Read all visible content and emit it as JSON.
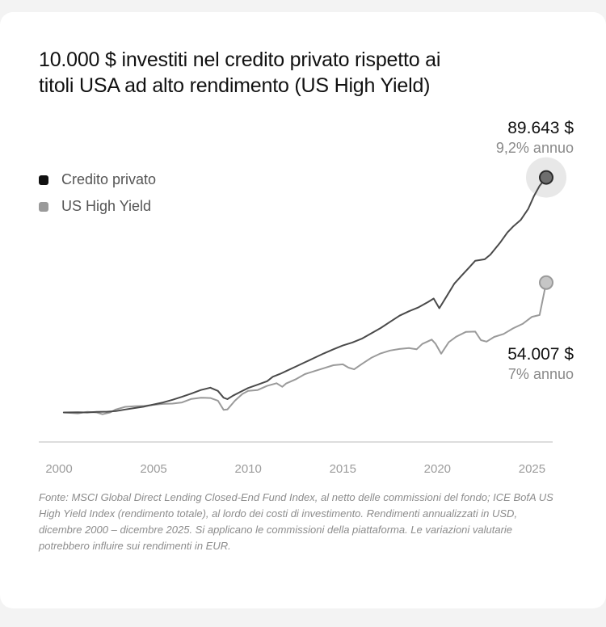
{
  "chart_data": {
    "type": "line",
    "title": "10.000 $ investiti nel credito privato rispetto ai titoli USA ad alto rendimento (US High Yield)",
    "x_ticks": [
      "2000",
      "2005",
      "2010",
      "2015",
      "2020",
      "2025"
    ],
    "xlim": [
      2000,
      2025.75
    ],
    "ylim": [
      0,
      95000
    ],
    "grid": false,
    "legend_position": "top-left",
    "series": [
      {
        "name": "Credito privato",
        "color": "#4a4a4a",
        "marker_color": "#1a1a1a",
        "end_value": "89.643 $",
        "end_rate": "9,2% annuo",
        "points": [
          [
            2000.25,
            10000
          ],
          [
            2001.0,
            10050
          ],
          [
            2001.5,
            10000
          ],
          [
            2002.0,
            10180
          ],
          [
            2002.5,
            10250
          ],
          [
            2003.0,
            10450
          ],
          [
            2003.5,
            11000
          ],
          [
            2004.0,
            11500
          ],
          [
            2004.5,
            12000
          ],
          [
            2005.0,
            12700
          ],
          [
            2005.5,
            13400
          ],
          [
            2006.0,
            14300
          ],
          [
            2006.5,
            15300
          ],
          [
            2007.0,
            16400
          ],
          [
            2007.5,
            17600
          ],
          [
            2008.0,
            18400
          ],
          [
            2008.4,
            17300
          ],
          [
            2008.7,
            15000
          ],
          [
            2008.9,
            14500
          ],
          [
            2009.2,
            15700
          ],
          [
            2009.6,
            17000
          ],
          [
            2010.0,
            18300
          ],
          [
            2010.5,
            19400
          ],
          [
            2011.0,
            20600
          ],
          [
            2011.3,
            22100
          ],
          [
            2011.7,
            23100
          ],
          [
            2012.0,
            24000
          ],
          [
            2012.5,
            25500
          ],
          [
            2013.0,
            27000
          ],
          [
            2013.5,
            28500
          ],
          [
            2014.0,
            30000
          ],
          [
            2014.5,
            31400
          ],
          [
            2015.0,
            32700
          ],
          [
            2015.5,
            33700
          ],
          [
            2016.0,
            35000
          ],
          [
            2016.5,
            36800
          ],
          [
            2017.0,
            38600
          ],
          [
            2017.5,
            40700
          ],
          [
            2018.0,
            42800
          ],
          [
            2018.5,
            44300
          ],
          [
            2019.0,
            45600
          ],
          [
            2019.5,
            47400
          ],
          [
            2019.8,
            48600
          ],
          [
            2020.1,
            45300
          ],
          [
            2020.5,
            49500
          ],
          [
            2020.9,
            53700
          ],
          [
            2021.3,
            56500
          ],
          [
            2021.7,
            59300
          ],
          [
            2022.0,
            61400
          ],
          [
            2022.5,
            61900
          ],
          [
            2022.8,
            63500
          ],
          [
            2023.3,
            67400
          ],
          [
            2023.7,
            71000
          ],
          [
            2024.0,
            73000
          ],
          [
            2024.4,
            75200
          ],
          [
            2024.8,
            79000
          ],
          [
            2025.1,
            83300
          ],
          [
            2025.4,
            86800
          ],
          [
            2025.75,
            89643
          ]
        ]
      },
      {
        "name": "US High Yield",
        "color": "#9a9a9a",
        "marker_color": "#c4c4c4",
        "end_value": "54.007 $",
        "end_rate": "7% annuo",
        "points": [
          [
            2000.25,
            10000
          ],
          [
            2001.0,
            9700
          ],
          [
            2001.5,
            10200
          ],
          [
            2002.0,
            10000
          ],
          [
            2002.3,
            9400
          ],
          [
            2002.7,
            10000
          ],
          [
            2003.0,
            11000
          ],
          [
            2003.5,
            11900
          ],
          [
            2004.0,
            12100
          ],
          [
            2004.5,
            12200
          ],
          [
            2005.0,
            12600
          ],
          [
            2005.5,
            12900
          ],
          [
            2006.0,
            13000
          ],
          [
            2006.5,
            13400
          ],
          [
            2007.0,
            14600
          ],
          [
            2007.5,
            15000
          ],
          [
            2008.0,
            14900
          ],
          [
            2008.4,
            14000
          ],
          [
            2008.7,
            10900
          ],
          [
            2008.9,
            11000
          ],
          [
            2009.3,
            14000
          ],
          [
            2009.7,
            16300
          ],
          [
            2010.0,
            17300
          ],
          [
            2010.5,
            17600
          ],
          [
            2011.0,
            19000
          ],
          [
            2011.5,
            19900
          ],
          [
            2011.8,
            18700
          ],
          [
            2012.0,
            19800
          ],
          [
            2012.5,
            21200
          ],
          [
            2013.0,
            23000
          ],
          [
            2013.5,
            24000
          ],
          [
            2014.0,
            25000
          ],
          [
            2014.5,
            26000
          ],
          [
            2015.0,
            26300
          ],
          [
            2015.3,
            25200
          ],
          [
            2015.6,
            24600
          ],
          [
            2016.0,
            26400
          ],
          [
            2016.5,
            28500
          ],
          [
            2017.0,
            30000
          ],
          [
            2017.5,
            31000
          ],
          [
            2018.0,
            31500
          ],
          [
            2018.5,
            31800
          ],
          [
            2018.9,
            31400
          ],
          [
            2019.2,
            33200
          ],
          [
            2019.7,
            34700
          ],
          [
            2019.9,
            33300
          ],
          [
            2020.2,
            29900
          ],
          [
            2020.6,
            33800
          ],
          [
            2021.0,
            35700
          ],
          [
            2021.5,
            37300
          ],
          [
            2022.0,
            37400
          ],
          [
            2022.3,
            34500
          ],
          [
            2022.6,
            34000
          ],
          [
            2023.0,
            35600
          ],
          [
            2023.5,
            36600
          ],
          [
            2024.0,
            38500
          ],
          [
            2024.5,
            40000
          ],
          [
            2025.0,
            42400
          ],
          [
            2025.4,
            43000
          ],
          [
            2025.75,
            54007
          ]
        ]
      }
    ],
    "source": "Fonte: MSCI Global Direct Lending Closed-End Fund Index, al netto delle commissioni del fondo; ICE BofA US High Yield Index (rendimento totale), al lordo dei costi di investimento. Rendimenti annualizzati in USD, dicembre 2000 – dicembre 2025. Si applicano le commissioni della piattaforma. Le variazioni valutarie potrebbero influire sui rendimenti in EUR."
  }
}
